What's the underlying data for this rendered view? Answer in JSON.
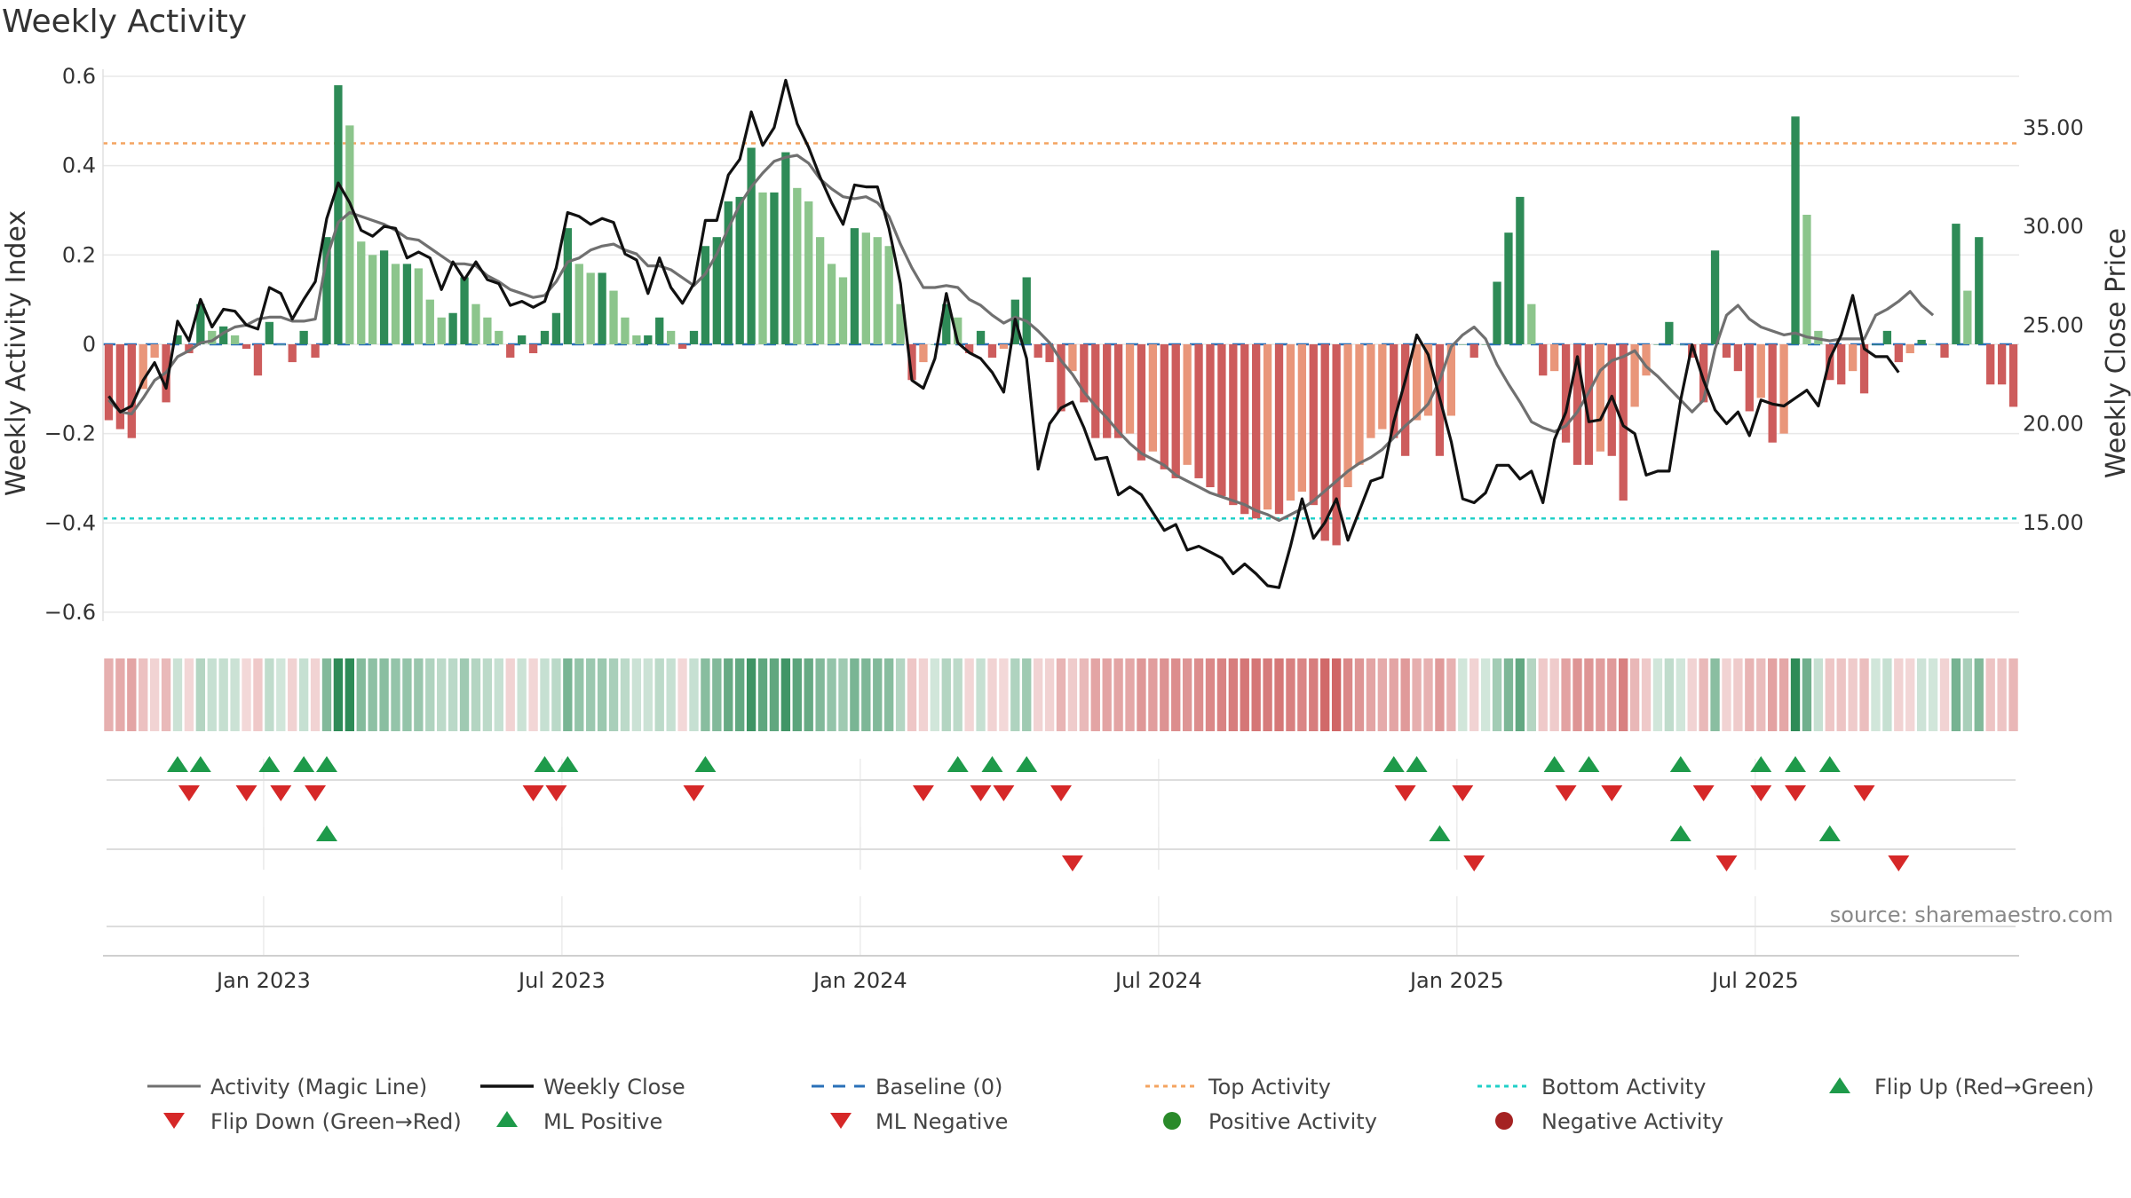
{
  "chart_data": {
    "type": "bar+line",
    "title": "Weekly Activity",
    "ylabel_left": "Weekly Activity Index",
    "ylabel_right": "Weekly Close Price",
    "source": "source: sharemaestro.com",
    "x_start": "2022-09-26",
    "week_days": 7,
    "ylim_left": [
      -0.62,
      0.6
    ],
    "ylim_right": [
      10.0,
      37.6
    ],
    "yticks_left": [
      {
        "v": 0.6,
        "l": "0.6"
      },
      {
        "v": 0.4,
        "l": "0.4"
      },
      {
        "v": 0.2,
        "l": "0.2"
      },
      {
        "v": 0,
        "l": "0"
      },
      {
        "v": -0.2,
        "l": "−0.2"
      },
      {
        "v": -0.4,
        "l": "−0.4"
      },
      {
        "v": -0.6,
        "l": "−0.6"
      }
    ],
    "yticks_right": [
      {
        "v": 35,
        "l": "35.00"
      },
      {
        "v": 30,
        "l": "30.00"
      },
      {
        "v": 25,
        "l": "25.00"
      },
      {
        "v": 20,
        "l": "20.00"
      },
      {
        "v": 15,
        "l": "15.00"
      }
    ],
    "xticks": [
      {
        "week": 14,
        "l": "Jan 2023"
      },
      {
        "week": 40,
        "l": "Jul 2023"
      },
      {
        "week": 66,
        "l": "Jan 2024"
      },
      {
        "week": 92,
        "l": "Jul 2024"
      },
      {
        "week": 118,
        "l": "Jan 2025"
      },
      {
        "week": 144,
        "l": "Jul 2025"
      }
    ],
    "top_activity": 0.45,
    "bottom_activity": -0.39,
    "baseline": 0,
    "activity": [
      -0.17,
      -0.19,
      -0.21,
      -0.1,
      -0.03,
      -0.13,
      0.02,
      -0.02,
      0.09,
      0.03,
      0.04,
      0.02,
      -0.01,
      -0.07,
      0.05,
      0.0,
      -0.04,
      0.03,
      -0.03,
      0.24,
      0.58,
      0.49,
      0.23,
      0.2,
      0.21,
      0.18,
      0.18,
      0.17,
      0.1,
      0.06,
      0.07,
      0.15,
      0.09,
      0.06,
      0.03,
      -0.03,
      0.02,
      -0.02,
      0.03,
      0.07,
      0.26,
      0.18,
      0.16,
      0.16,
      0.12,
      0.06,
      0.02,
      0.02,
      0.06,
      0.03,
      -0.01,
      0.03,
      0.22,
      0.24,
      0.32,
      0.33,
      0.44,
      0.34,
      0.34,
      0.43,
      0.35,
      0.32,
      0.24,
      0.18,
      0.15,
      0.26,
      0.25,
      0.24,
      0.22,
      0.09,
      -0.08,
      -0.04,
      0.0,
      0.09,
      0.06,
      -0.02,
      0.03,
      -0.03,
      -0.01,
      0.1,
      0.15,
      -0.03,
      -0.04,
      -0.15,
      -0.06,
      -0.13,
      -0.21,
      -0.21,
      -0.21,
      -0.2,
      -0.26,
      -0.24,
      -0.28,
      -0.3,
      -0.27,
      -0.3,
      -0.32,
      -0.34,
      -0.36,
      -0.38,
      -0.39,
      -0.37,
      -0.38,
      -0.35,
      -0.33,
      -0.36,
      -0.44,
      -0.45,
      -0.32,
      -0.27,
      -0.21,
      -0.19,
      -0.21,
      -0.25,
      -0.17,
      -0.16,
      -0.25,
      -0.16,
      0.0,
      -0.03,
      0.0,
      0.14,
      0.25,
      0.33,
      0.09,
      -0.07,
      -0.06,
      -0.22,
      -0.27,
      -0.27,
      -0.24,
      -0.25,
      -0.35,
      -0.14,
      -0.07,
      0.0,
      0.05,
      0.0,
      -0.03,
      -0.13,
      0.21,
      -0.03,
      -0.06,
      -0.15,
      -0.12,
      -0.22,
      -0.2,
      0.51,
      0.29,
      0.03,
      -0.08,
      -0.09,
      -0.06,
      -0.11,
      0.0,
      0.03,
      -0.04,
      -0.02,
      0.01,
      0.0,
      -0.03,
      0.27,
      0.12,
      0.24,
      -0.09,
      -0.09,
      -0.14
    ],
    "close": [
      21.4,
      20.6,
      20.9,
      22.2,
      23.1,
      21.8,
      25.2,
      24.2,
      26.3,
      24.9,
      25.8,
      25.7,
      25.0,
      24.8,
      26.9,
      26.6,
      25.3,
      26.3,
      27.2,
      30.4,
      32.2,
      31.2,
      29.8,
      29.5,
      30.0,
      29.9,
      28.4,
      28.7,
      28.4,
      26.8,
      28.2,
      27.3,
      28.2,
      27.3,
      27.1,
      26.0,
      26.2,
      25.9,
      26.2,
      27.9,
      30.7,
      30.5,
      30.1,
      30.4,
      30.2,
      28.6,
      28.3,
      26.6,
      28.4,
      26.9,
      26.1,
      27.1,
      30.3,
      30.3,
      32.6,
      33.4,
      35.8,
      34.1,
      35.0,
      37.4,
      35.2,
      34.0,
      32.5,
      31.2,
      30.1,
      32.1,
      32.0,
      32.0,
      29.9,
      27.1,
      22.2,
      21.8,
      23.3,
      26.6,
      24.1,
      23.6,
      23.3,
      22.6,
      21.6,
      25.3,
      23.3,
      17.7,
      20.0,
      20.8,
      21.1,
      19.8,
      18.2,
      18.3,
      16.4,
      16.8,
      16.4,
      15.5,
      14.6,
      14.9,
      13.6,
      13.8,
      13.5,
      13.2,
      12.4,
      12.9,
      12.4,
      11.8,
      11.7,
      13.8,
      16.2,
      14.2,
      15.0,
      16.2,
      14.1,
      15.6,
      17.1,
      17.3,
      20.1,
      22.2,
      24.5,
      23.5,
      21.3,
      19.1,
      16.2,
      16.0,
      16.5,
      17.9,
      17.9,
      17.2,
      17.6,
      16.0,
      19.2,
      20.6,
      23.4,
      20.1,
      20.2,
      21.4,
      19.9,
      19.5,
      17.4,
      17.6,
      17.6,
      21.2,
      24.0,
      22.2,
      20.7,
      20.0,
      20.6,
      19.4,
      21.2,
      21.0,
      20.9,
      21.3,
      21.7,
      20.9,
      23.3,
      24.5,
      26.5,
      23.8,
      23.4,
      23.4,
      22.6
    ],
    "magic_line": [
      21.2,
      20.6,
      20.5,
      21.3,
      22.2,
      22.6,
      23.4,
      23.7,
      24.1,
      24.2,
      24.6,
      24.9,
      25.0,
      25.3,
      25.4,
      25.4,
      25.2,
      25.2,
      25.3,
      28.4,
      30.2,
      30.7,
      30.5,
      30.3,
      30.1,
      29.8,
      29.4,
      29.3,
      28.9,
      28.5,
      28.1,
      28.1,
      28.0,
      27.5,
      27.2,
      26.8,
      26.6,
      26.4,
      26.5,
      27.2,
      28.2,
      28.4,
      28.8,
      29.0,
      29.1,
      28.8,
      28.6,
      28.0,
      28.0,
      27.8,
      27.4,
      27.0,
      27.6,
      28.6,
      29.9,
      31.1,
      32.0,
      32.7,
      33.3,
      33.5,
      33.6,
      33.2,
      32.4,
      31.9,
      31.5,
      31.4,
      31.5,
      31.2,
      30.5,
      29.1,
      27.9,
      26.9,
      26.9,
      27.0,
      26.9,
      26.3,
      26.0,
      25.5,
      25.1,
      25.4,
      25.2,
      24.7,
      24.1,
      23.2,
      22.5,
      21.6,
      20.9,
      20.3,
      19.6,
      19.0,
      18.5,
      18.2,
      17.9,
      17.4,
      17.1,
      16.8,
      16.5,
      16.3,
      16.1,
      15.9,
      15.6,
      15.4,
      15.1,
      15.4,
      15.7,
      16.1,
      16.6,
      17.1,
      17.6,
      18.0,
      18.3,
      18.7,
      19.3,
      19.9,
      20.4,
      21.0,
      22.2,
      23.9,
      24.5,
      24.9,
      24.3,
      23.0,
      22.0,
      21.1,
      20.1,
      19.8,
      19.6,
      19.9,
      20.6,
      21.6,
      22.7,
      23.2,
      23.4,
      23.7,
      22.9,
      22.4,
      21.8,
      21.2,
      20.6,
      21.2,
      23.8,
      25.5,
      26.0,
      25.3,
      24.9,
      24.7,
      24.5,
      24.6,
      24.4,
      24.3,
      24.2,
      24.3,
      24.3,
      24.3,
      25.5,
      25.8,
      26.2,
      26.7,
      26.0,
      25.5
    ],
    "flip_up_row1": [
      6,
      8,
      14,
      17,
      19,
      38,
      40,
      52,
      74,
      77,
      80,
      112,
      114,
      126,
      129,
      137,
      144,
      147,
      150
    ],
    "flip_down_row1": [
      7,
      12,
      15,
      18,
      37,
      39,
      51,
      71,
      76,
      78,
      83,
      113,
      118,
      127,
      131,
      139,
      144,
      147,
      153
    ],
    "ml_positive_row2": [
      19,
      116,
      137,
      150
    ],
    "ml_negative_row2": [
      84,
      119,
      141,
      156
    ],
    "legend": {
      "activity_line": "Activity (Magic Line)",
      "weekly_close": "Weekly Close",
      "baseline": "Baseline (0)",
      "top_activity": "Top Activity",
      "bottom_activity": "Bottom Activity",
      "flip_up": "Flip Up (Red→Green)",
      "flip_down": "Flip Down (Green→Red)",
      "ml_positive": "ML Positive",
      "ml_negative": "ML Negative",
      "positive_activity": "Positive Activity",
      "negative_activity": "Negative Activity"
    },
    "colors": {
      "pos_strong": "#2e8b57",
      "pos_light": "#8cc58c",
      "neg_strong": "#cd5c5c",
      "neg_light": "#e9967a",
      "close_line": "#111111",
      "magic_line": "#707070",
      "baseline": "#2a70b8",
      "top": "#f4a460",
      "bottom": "#20d0c8",
      "marker_up": "#1e9a4a",
      "marker_down": "#d62828",
      "pos_dot": "#2a8a2a",
      "neg_dot": "#a52222"
    }
  }
}
